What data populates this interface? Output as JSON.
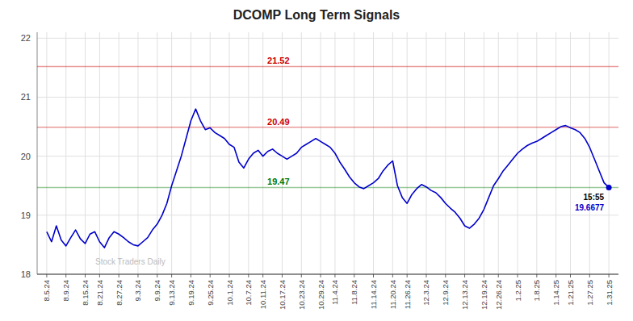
{
  "chart_data": {
    "type": "line",
    "title": "DCOMP Long Term Signals",
    "color": "#0000cc",
    "grid": true,
    "ylim": [
      18.0,
      22.1
    ],
    "yticks": [
      18,
      19,
      20,
      21,
      22
    ],
    "categories": [
      "8.5.24",
      null,
      null,
      null,
      "8.9.24",
      null,
      null,
      null,
      "8.15.24",
      null,
      null,
      "8.21.24",
      null,
      null,
      null,
      "8.27.24",
      null,
      null,
      null,
      "9.3.24",
      null,
      null,
      null,
      "9.9.24",
      null,
      null,
      "9.13.24",
      null,
      null,
      null,
      "9.19.24",
      null,
      null,
      null,
      "9.25.24",
      null,
      null,
      null,
      "10.1.24",
      null,
      null,
      null,
      "10.7.24",
      null,
      null,
      "10.11.24",
      null,
      null,
      null,
      "10.17.24",
      null,
      null,
      null,
      "10.23.24",
      null,
      null,
      null,
      "10.29.24",
      null,
      null,
      "11.4.24",
      null,
      null,
      null,
      "11.8.24",
      null,
      null,
      null,
      "11.14.24",
      null,
      null,
      null,
      "11.20.24",
      null,
      null,
      "11.26.24",
      null,
      null,
      null,
      "12.3.24",
      null,
      null,
      null,
      "12.9.24",
      null,
      null,
      null,
      "12.13.24",
      null,
      null,
      null,
      "12.19.24",
      null,
      null,
      "12.26.24",
      null,
      null,
      null,
      "1.2.25",
      null,
      null,
      null,
      "1.8.25",
      null,
      null,
      null,
      "1.14.25",
      null,
      null,
      "1.21.25",
      null,
      null,
      null,
      "1.27.25",
      null,
      null,
      null,
      "1.31.25"
    ],
    "values": [
      18.72,
      18.55,
      18.82,
      18.58,
      18.48,
      18.62,
      18.75,
      18.6,
      18.52,
      18.68,
      18.72,
      18.55,
      18.45,
      18.62,
      18.72,
      18.68,
      18.62,
      18.55,
      18.5,
      18.48,
      18.55,
      18.62,
      18.75,
      18.85,
      19.0,
      19.2,
      19.5,
      19.75,
      20.0,
      20.3,
      20.6,
      20.8,
      20.6,
      20.45,
      20.48,
      20.4,
      20.35,
      20.3,
      20.2,
      20.15,
      19.9,
      19.8,
      19.95,
      20.05,
      20.1,
      20.0,
      20.08,
      20.12,
      20.05,
      20.0,
      19.95,
      20.0,
      20.05,
      20.15,
      20.2,
      20.25,
      20.3,
      20.25,
      20.2,
      20.15,
      20.05,
      19.9,
      19.78,
      19.65,
      19.55,
      19.48,
      19.45,
      19.5,
      19.55,
      19.62,
      19.75,
      19.85,
      19.92,
      19.5,
      19.3,
      19.2,
      19.35,
      19.45,
      19.52,
      19.48,
      19.42,
      19.38,
      19.3,
      19.2,
      19.12,
      19.05,
      18.95,
      18.82,
      18.78,
      18.85,
      18.95,
      19.1,
      19.3,
      19.5,
      19.62,
      19.75,
      19.85,
      19.95,
      20.05,
      20.12,
      20.18,
      20.22,
      20.25,
      20.3,
      20.35,
      20.4,
      20.45,
      20.5,
      20.52,
      20.48,
      20.45,
      20.4,
      20.3,
      20.15,
      19.95,
      19.75,
      19.55,
      19.47
    ],
    "reference_lines": [
      {
        "value": 21.52,
        "color": "#cc0000"
      },
      {
        "value": 20.49,
        "color": "#cc0000"
      },
      {
        "value": 19.47,
        "color": "#007700"
      }
    ],
    "annotations": [
      {
        "text": "15:55"
      },
      {
        "text": "19.6677"
      },
      {
        "text": "Stock Traders Daily"
      }
    ]
  }
}
